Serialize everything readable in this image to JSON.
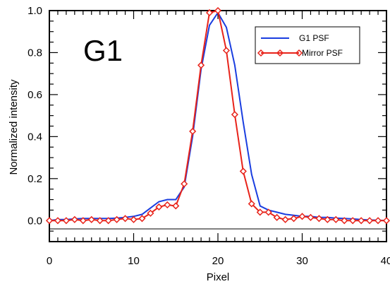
{
  "chart_data": {
    "type": "line",
    "panel_label": "G1",
    "xlabel": "Pixel",
    "ylabel": "Normalized intensity",
    "xlim": [
      0,
      40
    ],
    "ylim": [
      -0.1,
      1.0
    ],
    "x_ticks": [
      0,
      10,
      20,
      30,
      40
    ],
    "y_ticks": [
      0.0,
      0.2,
      0.4,
      0.6,
      0.8,
      1.0
    ],
    "y_tick_labels": [
      "0.0",
      "0.2",
      "0.4",
      "0.6",
      "0.8",
      "1.0"
    ],
    "legend_position": "top-right",
    "series": [
      {
        "name": "G1 PSF",
        "color": "#1a3ee0",
        "marker": "none",
        "x": [
          0,
          1,
          2,
          3,
          4,
          5,
          6,
          7,
          8,
          9,
          10,
          11,
          12,
          13,
          14,
          15,
          16,
          17,
          18,
          19,
          20,
          21,
          22,
          23,
          24,
          25,
          26,
          27,
          28,
          29,
          30,
          31,
          32,
          33,
          34,
          35,
          36,
          37,
          38,
          39,
          40
        ],
        "y": [
          0.0,
          0.005,
          0.005,
          0.008,
          0.01,
          0.01,
          0.01,
          0.01,
          0.012,
          0.015,
          0.02,
          0.03,
          0.06,
          0.09,
          0.1,
          0.1,
          0.16,
          0.4,
          0.72,
          0.93,
          0.99,
          0.92,
          0.74,
          0.47,
          0.22,
          0.07,
          0.05,
          0.04,
          0.03,
          0.025,
          0.02,
          0.02,
          0.015,
          0.015,
          0.012,
          0.01,
          0.008,
          0.005,
          0.003,
          0.002,
          0.0
        ]
      },
      {
        "name": "Mirror PSF",
        "color": "#e8231a",
        "marker": "diamond",
        "x": [
          0,
          1,
          2,
          3,
          4,
          5,
          6,
          7,
          8,
          9,
          10,
          11,
          12,
          13,
          14,
          15,
          16,
          17,
          18,
          19,
          20,
          21,
          22,
          23,
          24,
          25,
          26,
          27,
          28,
          29,
          30,
          31,
          32,
          33,
          34,
          35,
          36,
          37,
          38,
          39,
          40
        ],
        "y": [
          0.0,
          0.0,
          0.0,
          0.005,
          0.0,
          0.005,
          0.0,
          0.0,
          0.005,
          0.01,
          0.005,
          0.01,
          0.035,
          0.065,
          0.075,
          0.07,
          0.175,
          0.425,
          0.74,
          0.99,
          1.0,
          0.81,
          0.505,
          0.235,
          0.08,
          0.04,
          0.04,
          0.015,
          0.005,
          0.01,
          0.02,
          0.015,
          0.01,
          0.005,
          0.005,
          0.0,
          0.0,
          0.0,
          0.0,
          0.0,
          0.0
        ]
      }
    ]
  }
}
